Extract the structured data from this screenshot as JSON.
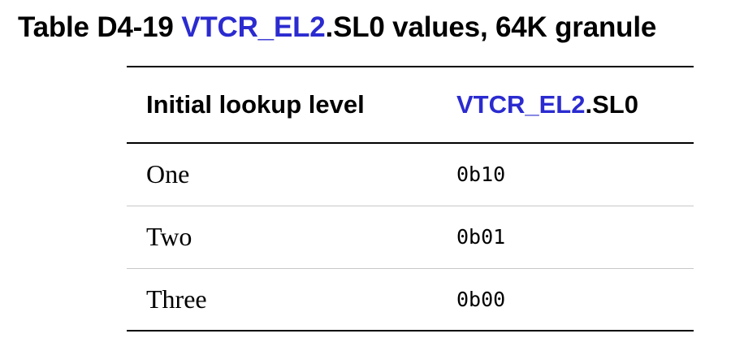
{
  "caption": {
    "prefix": "Table D4-19 ",
    "register_link": "VTCR_EL2",
    "suffix": ".SL0 values, 64K granule"
  },
  "table": {
    "headers": {
      "col1": "Initial lookup level",
      "col2_link": "VTCR_EL2",
      "col2_suffix": ".SL0"
    },
    "rows": [
      {
        "level": "One",
        "value": "0b10"
      },
      {
        "level": "Two",
        "value": "0b01"
      },
      {
        "level": "Three",
        "value": "0b00"
      }
    ]
  },
  "colors": {
    "link": "#2b2bd0",
    "text": "#000000",
    "row_divider": "#c8c8c8"
  }
}
